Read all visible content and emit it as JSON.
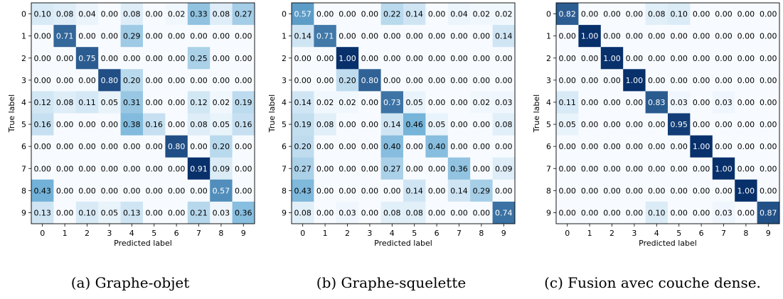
{
  "figure": {
    "colors": {
      "min": "#f7fbff",
      "mid": "#6baed6",
      "max": "#08306b",
      "text_dark": "#000000",
      "text_light": "#ffffff",
      "frame": "#000000"
    },
    "panels": [
      {
        "caption": "(a) Graphe-objet"
      },
      {
        "caption": "(b) Graphe-squelette"
      },
      {
        "caption": "(c) Fusion avec couche dense."
      }
    ]
  },
  "chart_data": [
    {
      "type": "heatmap",
      "xlabel": "Predicted label",
      "ylabel": "True label",
      "x_ticks": [
        "0",
        "1",
        "2",
        "3",
        "4",
        "5",
        "6",
        "7",
        "8",
        "9"
      ],
      "y_ticks": [
        "0",
        "1",
        "2",
        "3",
        "4",
        "5",
        "6",
        "7",
        "8",
        "9"
      ],
      "values": [
        [
          0.1,
          0.08,
          0.04,
          0.0,
          0.08,
          0.0,
          0.02,
          0.33,
          0.08,
          0.27
        ],
        [
          0.0,
          0.71,
          0.0,
          0.0,
          0.29,
          0.0,
          0.0,
          0.0,
          0.0,
          0.0
        ],
        [
          0.0,
          0.0,
          0.75,
          0.0,
          0.0,
          0.0,
          0.0,
          0.25,
          0.0,
          0.0
        ],
        [
          0.0,
          0.0,
          0.0,
          0.8,
          0.2,
          0.0,
          0.0,
          0.0,
          0.0,
          0.0
        ],
        [
          0.12,
          0.08,
          0.11,
          0.05,
          0.31,
          0.0,
          0.0,
          0.12,
          0.02,
          0.19
        ],
        [
          0.16,
          0.0,
          0.0,
          0.0,
          0.38,
          0.16,
          0.0,
          0.08,
          0.05,
          0.16
        ],
        [
          0.0,
          0.0,
          0.0,
          0.0,
          0.0,
          0.0,
          0.8,
          0.0,
          0.2,
          0.0
        ],
        [
          0.0,
          0.0,
          0.0,
          0.0,
          0.0,
          0.0,
          0.0,
          0.91,
          0.09,
          0.0
        ],
        [
          0.43,
          0.0,
          0.0,
          0.0,
          0.0,
          0.0,
          0.0,
          0.0,
          0.57,
          0.0
        ],
        [
          0.13,
          0.0,
          0.1,
          0.05,
          0.13,
          0.0,
          0.0,
          0.21,
          0.03,
          0.36
        ]
      ]
    },
    {
      "type": "heatmap",
      "xlabel": "Predicted label",
      "ylabel": "True label",
      "x_ticks": [
        "0",
        "1",
        "2",
        "3",
        "4",
        "5",
        "6",
        "7",
        "8",
        "9"
      ],
      "y_ticks": [
        "0",
        "1",
        "2",
        "3",
        "4",
        "5",
        "6",
        "7",
        "8",
        "9"
      ],
      "values": [
        [
          0.57,
          0.0,
          0.0,
          0.0,
          0.22,
          0.14,
          0.0,
          0.04,
          0.02,
          0.02
        ],
        [
          0.14,
          0.71,
          0.0,
          0.0,
          0.0,
          0.0,
          0.0,
          0.0,
          0.0,
          0.14
        ],
        [
          0.0,
          0.0,
          1.0,
          0.0,
          0.0,
          0.0,
          0.0,
          0.0,
          0.0,
          0.0
        ],
        [
          0.0,
          0.0,
          0.2,
          0.8,
          0.0,
          0.0,
          0.0,
          0.0,
          0.0,
          0.0
        ],
        [
          0.14,
          0.02,
          0.02,
          0.0,
          0.73,
          0.05,
          0.0,
          0.0,
          0.02,
          0.03
        ],
        [
          0.19,
          0.08,
          0.0,
          0.0,
          0.14,
          0.46,
          0.05,
          0.0,
          0.0,
          0.08
        ],
        [
          0.2,
          0.0,
          0.0,
          0.0,
          0.4,
          0.0,
          0.4,
          0.0,
          0.0,
          0.0
        ],
        [
          0.27,
          0.0,
          0.0,
          0.0,
          0.27,
          0.0,
          0.0,
          0.36,
          0.0,
          0.09
        ],
        [
          0.43,
          0.0,
          0.0,
          0.0,
          0.0,
          0.14,
          0.0,
          0.14,
          0.29,
          0.0
        ],
        [
          0.08,
          0.0,
          0.03,
          0.0,
          0.08,
          0.08,
          0.0,
          0.0,
          0.0,
          0.74
        ]
      ]
    },
    {
      "type": "heatmap",
      "xlabel": "Predicted label",
      "ylabel": "True label",
      "x_ticks": [
        "0",
        "1",
        "2",
        "3",
        "4",
        "5",
        "6",
        "7",
        "8",
        "9"
      ],
      "y_ticks": [
        "0",
        "1",
        "2",
        "3",
        "4",
        "5",
        "6",
        "7",
        "8",
        "9"
      ],
      "values": [
        [
          0.82,
          0.0,
          0.0,
          0.0,
          0.08,
          0.1,
          0.0,
          0.0,
          0.0,
          0.0
        ],
        [
          0.0,
          1.0,
          0.0,
          0.0,
          0.0,
          0.0,
          0.0,
          0.0,
          0.0,
          0.0
        ],
        [
          0.0,
          0.0,
          1.0,
          0.0,
          0.0,
          0.0,
          0.0,
          0.0,
          0.0,
          0.0
        ],
        [
          0.0,
          0.0,
          0.0,
          1.0,
          0.0,
          0.0,
          0.0,
          0.0,
          0.0,
          0.0
        ],
        [
          0.11,
          0.0,
          0.0,
          0.0,
          0.83,
          0.03,
          0.0,
          0.03,
          0.0,
          0.0
        ],
        [
          0.05,
          0.0,
          0.0,
          0.0,
          0.0,
          0.95,
          0.0,
          0.0,
          0.0,
          0.0
        ],
        [
          0.0,
          0.0,
          0.0,
          0.0,
          0.0,
          0.0,
          1.0,
          0.0,
          0.0,
          0.0
        ],
        [
          0.0,
          0.0,
          0.0,
          0.0,
          0.0,
          0.0,
          0.0,
          1.0,
          0.0,
          0.0
        ],
        [
          0.0,
          0.0,
          0.0,
          0.0,
          0.0,
          0.0,
          0.0,
          0.0,
          1.0,
          0.0
        ],
        [
          0.0,
          0.0,
          0.0,
          0.0,
          0.1,
          0.0,
          0.0,
          0.03,
          0.0,
          0.87
        ]
      ]
    }
  ]
}
